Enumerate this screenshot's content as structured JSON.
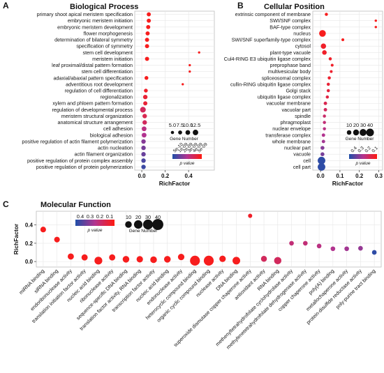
{
  "colors": {
    "low": "#1f4fa8",
    "mid": "#b2338f",
    "high": "#ff1a10",
    "grid": "#e6e6e6",
    "panel_border": "#bdbdbd"
  },
  "chart_data": [
    {
      "id": "A",
      "letter": "A",
      "type": "scatter",
      "title": "Biological Process",
      "xlabel": "RichFactor",
      "ylabel": "",
      "xlim": [
        -0.06,
        0.62
      ],
      "xticks": [
        0.0,
        0.2,
        0.4
      ],
      "xtick_labels": [
        "0.0",
        "0.2",
        "0.4"
      ],
      "grid": true,
      "size_legend_title": "Gene Number",
      "size_legend_values": [
        5.0,
        7.5,
        10.0,
        12.5
      ],
      "size_legend_labels": [
        "5.0",
        "7.5",
        "10.0",
        "12.5"
      ],
      "color_legend_title": "p value",
      "color_legend_labels": [
        "5e-10",
        "1e-09",
        "2e-09",
        "3e-09",
        "4e-09",
        "5e-09"
      ],
      "points": [
        {
          "label": "primary shoot apical meristem specification",
          "x": 0.06,
          "gene_number": 8,
          "p": 0.95
        },
        {
          "label": "embryonic meristem initiation",
          "x": 0.06,
          "gene_number": 8,
          "p": 0.95
        },
        {
          "label": "embryonic meristem development",
          "x": 0.055,
          "gene_number": 8,
          "p": 0.95
        },
        {
          "label": "flower morphogenesis",
          "x": 0.05,
          "gene_number": 8,
          "p": 0.95
        },
        {
          "label": "determination of bilateral symmetry",
          "x": 0.045,
          "gene_number": 8,
          "p": 0.95
        },
        {
          "label": "specification of symmetry",
          "x": 0.045,
          "gene_number": 8,
          "p": 0.95
        },
        {
          "label": "stem cell development",
          "x": 0.49,
          "gene_number": 2,
          "p": 0.95
        },
        {
          "label": "meristem initiation",
          "x": 0.045,
          "gene_number": 8,
          "p": 0.95
        },
        {
          "label": "leaf proximal/distal pattern formation",
          "x": 0.41,
          "gene_number": 2,
          "p": 0.95
        },
        {
          "label": "stem cell differentiation",
          "x": 0.41,
          "gene_number": 2,
          "p": 0.95
        },
        {
          "label": "adaxial/abaxial pattern specification",
          "x": 0.04,
          "gene_number": 7,
          "p": 0.95
        },
        {
          "label": "adventitious root development",
          "x": 0.35,
          "gene_number": 2,
          "p": 0.95
        },
        {
          "label": "regulation of cell differentiation",
          "x": 0.035,
          "gene_number": 7,
          "p": 0.9
        },
        {
          "label": "regionalization",
          "x": 0.03,
          "gene_number": 9,
          "p": 0.85
        },
        {
          "label": "xylem and phloem pattern formation",
          "x": 0.03,
          "gene_number": 8,
          "p": 0.85
        },
        {
          "label": "regulation of developmental process",
          "x": 0.01,
          "gene_number": 13,
          "p": 0.7
        },
        {
          "label": "meristem structural organization",
          "x": 0.025,
          "gene_number": 9,
          "p": 0.75
        },
        {
          "label": "anatomical structure arrangement",
          "x": 0.025,
          "gene_number": 9,
          "p": 0.7
        },
        {
          "label": "cell adhesion",
          "x": 0.02,
          "gene_number": 10,
          "p": 0.55
        },
        {
          "label": "biological adhesion",
          "x": 0.02,
          "gene_number": 10,
          "p": 0.5
        },
        {
          "label": "positive regulation of actin filament polymerization",
          "x": 0.015,
          "gene_number": 9,
          "p": 0.35
        },
        {
          "label": "actin nucleation",
          "x": 0.015,
          "gene_number": 9,
          "p": 0.3
        },
        {
          "label": "actin filament organization",
          "x": 0.015,
          "gene_number": 9,
          "p": 0.25
        },
        {
          "label": "positive regulation of protein complex assembly",
          "x": 0.015,
          "gene_number": 9,
          "p": 0.15
        },
        {
          "label": "positive regulation of protein polymerization",
          "x": 0.015,
          "gene_number": 9,
          "p": 0.1
        }
      ]
    },
    {
      "id": "B",
      "letter": "B",
      "type": "scatter",
      "title": "Cellular Position",
      "xlabel": "RichFactor",
      "ylabel": "",
      "xlim": [
        -0.04,
        0.32
      ],
      "xticks": [
        0.0,
        0.1,
        0.2,
        0.3
      ],
      "xtick_labels": [
        "0.0",
        "0.1",
        "0.2",
        "0.3"
      ],
      "grid": true,
      "size_legend_title": "Gene Number",
      "size_legend_values": [
        10,
        20,
        30,
        40
      ],
      "size_legend_labels": [
        "10",
        "20",
        "30",
        "40"
      ],
      "color_legend_title": "p value",
      "color_legend_labels": [
        "0.4",
        "0.3",
        "0.2",
        "0.1"
      ],
      "points": [
        {
          "label": "extrinsic component of membrane",
          "x": 0.03,
          "gene_number": 3,
          "p": 0.95
        },
        {
          "label": "SWI/SNF complex",
          "x": 0.285,
          "gene_number": 1,
          "p": 0.95
        },
        {
          "label": "BAF-type complex",
          "x": 0.285,
          "gene_number": 1,
          "p": 0.95
        },
        {
          "label": "nucleus",
          "x": 0.01,
          "gene_number": 28,
          "p": 0.95
        },
        {
          "label": "SWI/SNF superfamily-type complex",
          "x": 0.115,
          "gene_number": 2,
          "p": 0.95
        },
        {
          "label": "cytosol",
          "x": 0.015,
          "gene_number": 15,
          "p": 0.9
        },
        {
          "label": "plant-type vacuole",
          "x": 0.02,
          "gene_number": 10,
          "p": 0.9
        },
        {
          "label": "Cul4-RING E3 ubiquitin ligase complex",
          "x": 0.05,
          "gene_number": 3,
          "p": 0.9
        },
        {
          "label": "preprophase band",
          "x": 0.06,
          "gene_number": 2,
          "p": 0.9
        },
        {
          "label": "multivesicular body",
          "x": 0.055,
          "gene_number": 2,
          "p": 0.88
        },
        {
          "label": "spliceosomal complex",
          "x": 0.045,
          "gene_number": 3,
          "p": 0.88
        },
        {
          "label": "cullin-RING ubiquitin ligase complex",
          "x": 0.04,
          "gene_number": 3,
          "p": 0.85
        },
        {
          "label": "Golgi stack",
          "x": 0.04,
          "gene_number": 3,
          "p": 0.82
        },
        {
          "label": "ubiquitin ligase complex",
          "x": 0.035,
          "gene_number": 3,
          "p": 0.8
        },
        {
          "label": "vacuolar membrane",
          "x": 0.025,
          "gene_number": 4,
          "p": 0.75
        },
        {
          "label": "vacuolar part",
          "x": 0.025,
          "gene_number": 4,
          "p": 0.7
        },
        {
          "label": "spindle",
          "x": 0.02,
          "gene_number": 3,
          "p": 0.65
        },
        {
          "label": "phragmoplast",
          "x": 0.02,
          "gene_number": 3,
          "p": 0.6
        },
        {
          "label": "nuclear envelope",
          "x": 0.02,
          "gene_number": 3,
          "p": 0.55
        },
        {
          "label": "transferase complex",
          "x": 0.015,
          "gene_number": 4,
          "p": 0.5
        },
        {
          "label": "whole membrane",
          "x": 0.015,
          "gene_number": 4,
          "p": 0.45
        },
        {
          "label": "nuclear part",
          "x": 0.01,
          "gene_number": 6,
          "p": 0.35
        },
        {
          "label": "vacuole",
          "x": 0.01,
          "gene_number": 6,
          "p": 0.3
        },
        {
          "label": "cell",
          "x": 0.005,
          "gene_number": 38,
          "p": 0.05
        },
        {
          "label": "cell part",
          "x": 0.005,
          "gene_number": 38,
          "p": 0.05
        }
      ]
    },
    {
      "id": "C",
      "letter": "C",
      "type": "scatter",
      "title": "Molecular Function",
      "xlabel": "",
      "ylabel": "RichFactor",
      "ylim": [
        -0.06,
        0.55
      ],
      "yticks": [
        0.0,
        0.2,
        0.4
      ],
      "ytick_labels": [
        "0.0",
        "0.2",
        "0.4"
      ],
      "grid": true,
      "size_legend_title": "Gene Number",
      "size_legend_values": [
        10,
        20,
        30,
        40
      ],
      "size_legend_labels": [
        "10",
        "20",
        "30",
        "40"
      ],
      "color_legend_title": "p value",
      "color_legend_labels": [
        "0.4",
        "0.3",
        "0.2",
        "0.1"
      ],
      "points": [
        {
          "label": "miRNA binding",
          "y": 0.35,
          "gene_number": 6,
          "p": 0.95
        },
        {
          "label": "siRNA binding",
          "y": 0.24,
          "gene_number": 6,
          "p": 0.95
        },
        {
          "label": "endoribonuclease activity",
          "y": 0.055,
          "gene_number": 8,
          "p": 0.95
        },
        {
          "label": "translation initiation factor activity",
          "y": 0.045,
          "gene_number": 8,
          "p": 0.95
        },
        {
          "label": "nucleic acid binding",
          "y": 0.01,
          "gene_number": 16,
          "p": 0.95
        },
        {
          "label": "ribonuclease activity",
          "y": 0.045,
          "gene_number": 8,
          "p": 0.95
        },
        {
          "label": "sequence-specific DNA binding",
          "y": 0.025,
          "gene_number": 10,
          "p": 0.95
        },
        {
          "label": "translation factor activity, RNA binding",
          "y": 0.025,
          "gene_number": 9,
          "p": 0.95
        },
        {
          "label": "transcription factor activity",
          "y": 0.02,
          "gene_number": 10,
          "p": 0.95
        },
        {
          "label": "nucleic acid binding ",
          "y": 0.025,
          "gene_number": 10,
          "p": 0.95
        },
        {
          "label": "endonuclease activity",
          "y": 0.05,
          "gene_number": 9,
          "p": 0.95
        },
        {
          "label": "heterocyclic compound binding",
          "y": 0.01,
          "gene_number": 30,
          "p": 0.95
        },
        {
          "label": "organic cyclic compound binding",
          "y": 0.01,
          "gene_number": 30,
          "p": 0.95
        },
        {
          "label": "nuclease activity",
          "y": 0.03,
          "gene_number": 9,
          "p": 0.95
        },
        {
          "label": "DNA binding",
          "y": 0.01,
          "gene_number": 15,
          "p": 0.95
        },
        {
          "label": "superoxide dismutase copper chaperone activity",
          "y": 0.5,
          "gene_number": 2,
          "p": 0.9
        },
        {
          "label": "antioxidant activity",
          "y": 0.03,
          "gene_number": 7,
          "p": 0.7
        },
        {
          "label": "RNA binding",
          "y": 0.01,
          "gene_number": 13,
          "p": 0.7
        },
        {
          "label": "methenyltetrahydrofolate cyclohydrolase activity",
          "y": 0.2,
          "gene_number": 3,
          "p": 0.6
        },
        {
          "label": "methylenetetrahydrofolate dehydrogenase activity",
          "y": 0.2,
          "gene_number": 3,
          "p": 0.6
        },
        {
          "label": "copper chaperone activity",
          "y": 0.17,
          "gene_number": 3,
          "p": 0.55
        },
        {
          "label": "poly(A) binding",
          "y": 0.14,
          "gene_number": 3,
          "p": 0.5
        },
        {
          "label": "metallochaperone activity",
          "y": 0.14,
          "gene_number": 3,
          "p": 0.45
        },
        {
          "label": "protein-disulfide reductase activity",
          "y": 0.145,
          "gene_number": 3,
          "p": 0.4
        },
        {
          "label": "poly-purine tract binding",
          "y": 0.1,
          "gene_number": 3,
          "p": 0.05
        }
      ]
    }
  ]
}
